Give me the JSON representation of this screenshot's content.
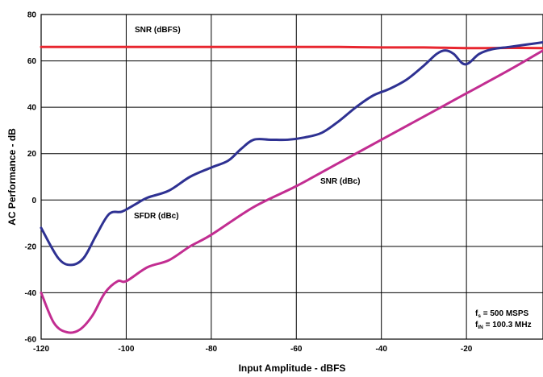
{
  "chart_data": {
    "type": "line",
    "title": "",
    "xlabel": "Input Amplitude - dBFS",
    "ylabel": "AC Performance - dB",
    "xlim": [
      -120,
      -2
    ],
    "ylim": [
      -60,
      80
    ],
    "x_ticks": [
      -120,
      -100,
      -80,
      -60,
      -40,
      -20
    ],
    "y_ticks": [
      -60,
      -40,
      -20,
      0,
      20,
      40,
      60,
      80
    ],
    "grid": true,
    "series": [
      {
        "name": "SNR (dBFS)",
        "color": "#e8262f",
        "x": [
          -120,
          -110,
          -100,
          -90,
          -80,
          -70,
          -60,
          -50,
          -40,
          -30,
          -20,
          -10,
          -2
        ],
        "y": [
          66,
          66,
          66,
          66,
          66,
          66,
          66,
          66,
          65.8,
          65.8,
          65.5,
          65.6,
          65.5
        ]
      },
      {
        "name": "SFDR (dBc)",
        "color": "#2e3192",
        "x": [
          -120,
          -116,
          -113,
          -110,
          -107,
          -104,
          -101,
          -98,
          -95,
          -90,
          -85,
          -80,
          -76,
          -73,
          -70,
          -66,
          -62,
          -58,
          -54,
          -50,
          -46,
          -42,
          -38,
          -34,
          -30,
          -27,
          -25,
          -23,
          -21,
          -19.5,
          -17,
          -14,
          -10,
          -6,
          -2
        ],
        "y": [
          -12,
          -25,
          -28,
          -25,
          -15,
          -6,
          -5,
          -2,
          1,
          4,
          10,
          14,
          17,
          22,
          26,
          26,
          26,
          27,
          29,
          34,
          40,
          45,
          48,
          52,
          58,
          63,
          64.5,
          63,
          59,
          59,
          63,
          65,
          66,
          67,
          68
        ]
      },
      {
        "name": "SNR (dBc)",
        "color": "#c22d91",
        "x": [
          -120,
          -117,
          -114,
          -111,
          -108,
          -105,
          -102,
          -100,
          -95,
          -90,
          -85,
          -80,
          -70,
          -60,
          -50,
          -40,
          -30,
          -20,
          -10,
          -2
        ],
        "y": [
          -40,
          -53,
          -57,
          -56,
          -50,
          -40,
          -35,
          -35,
          -29,
          -26,
          -20,
          -15,
          -3,
          6,
          16,
          26,
          36,
          46,
          56,
          64.5
        ]
      }
    ],
    "annotations": {
      "snr_dbfs": "SNR (dBFS)",
      "sfdr_dbc": "SFDR (dBc)",
      "snr_dbc": "SNR (dBc)",
      "fs_main": "f",
      "fs_sub": "s",
      "fs_val": " = 500 MSPS",
      "fin_main": "f",
      "fin_sub": "IN",
      "fin_val": " = 100.3 MHz"
    }
  }
}
